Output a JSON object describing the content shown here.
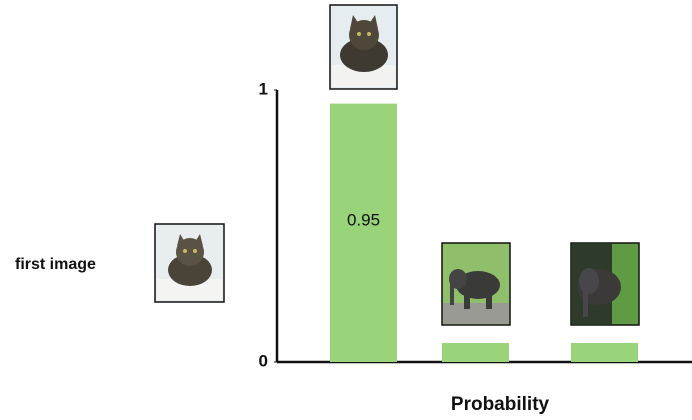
{
  "chart_data": {
    "type": "bar",
    "categories": [
      null,
      null,
      null
    ],
    "values": [
      0.95,
      0.07,
      0.07
    ],
    "value_labels": [
      "0.95",
      null,
      null
    ],
    "color": "#99d47a",
    "ylim": [
      0,
      1
    ],
    "yticks": [
      0,
      1
    ],
    "grid": false,
    "x_label": "Probability",
    "annotation": "first image"
  }
}
